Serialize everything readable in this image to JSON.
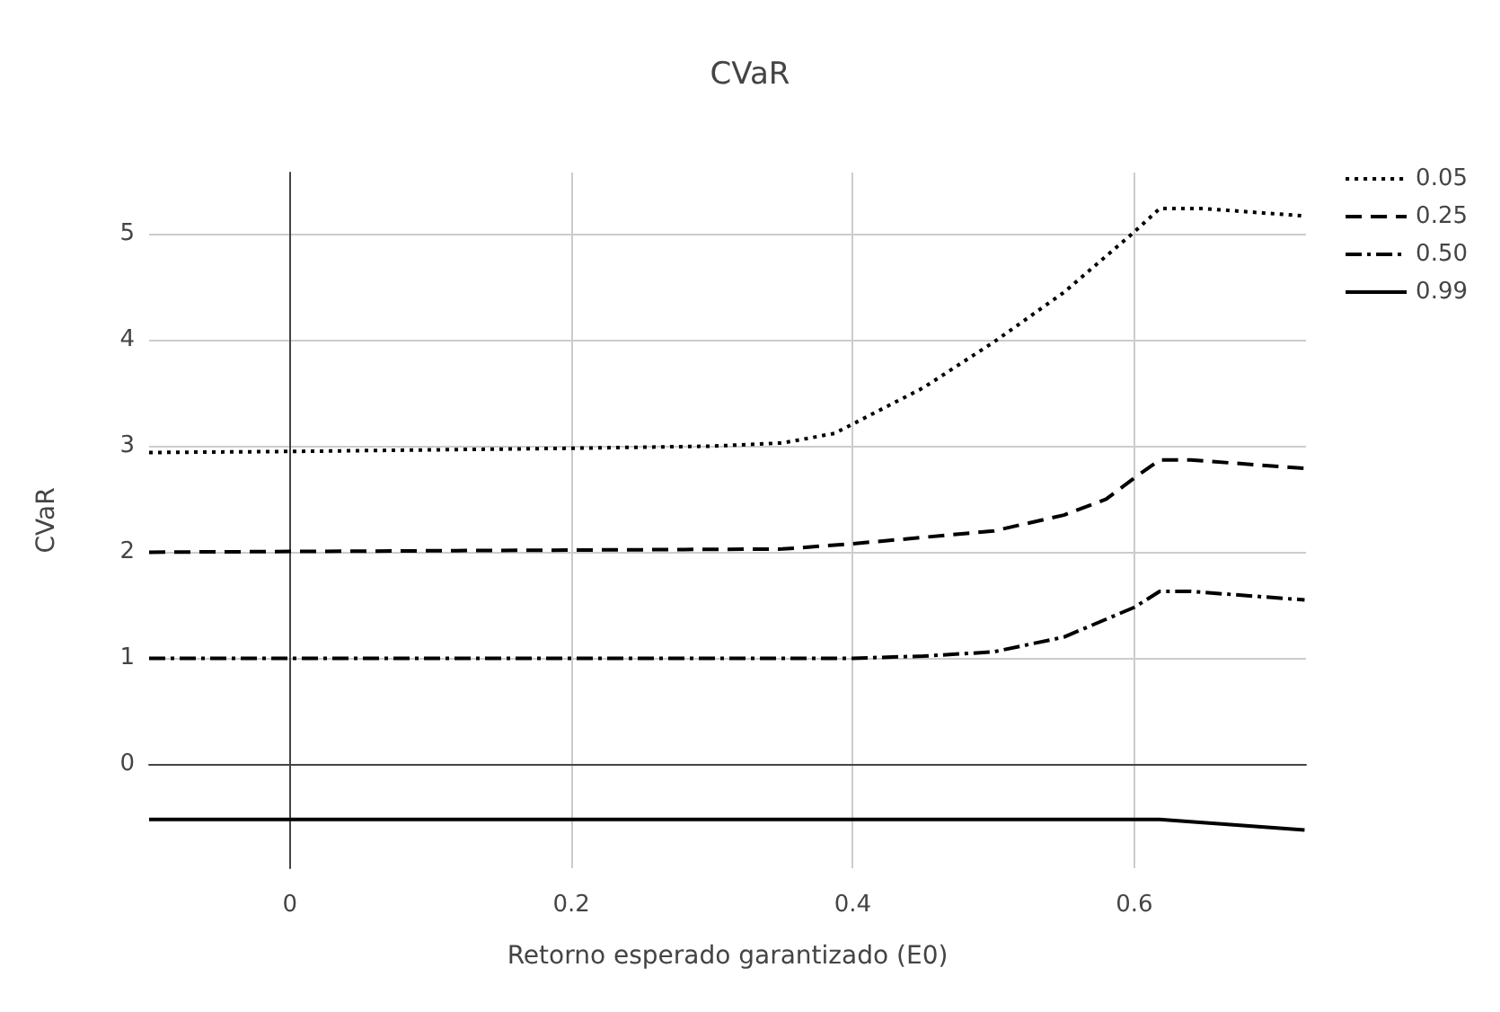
{
  "chart_data": {
    "type": "line",
    "title": "CVaR",
    "xlabel": "Retorno esperado garantizado (E0)",
    "ylabel": "CVaR",
    "xlim": [
      -0.1,
      0.722
    ],
    "xticks": [
      0,
      0.2,
      0.4,
      0.6
    ],
    "ylim": [
      -0.98,
      5.58
    ],
    "yticks": [
      0,
      1,
      2,
      3,
      4,
      5
    ],
    "grid": true,
    "legend": "top right",
    "marker": "none",
    "series": [
      {
        "name": "0.05",
        "color": "#000000",
        "line_style": "dotted",
        "x": [
          -0.1,
          0,
          0.2,
          0.3,
          0.35,
          0.387,
          0.45,
          0.5,
          0.55,
          0.6,
          0.618,
          0.65,
          0.721
        ],
        "values": [
          2.94,
          2.95,
          2.98,
          3.0,
          3.03,
          3.12,
          3.55,
          3.98,
          4.45,
          5.02,
          5.24,
          5.24,
          5.17
        ]
      },
      {
        "name": "0.25",
        "color": "#000000",
        "line_style": "dashed",
        "x": [
          -0.1,
          0.35,
          0.4,
          0.5,
          0.55,
          0.58,
          0.6,
          0.618,
          0.64,
          0.721
        ],
        "values": [
          2.0,
          2.03,
          2.08,
          2.2,
          2.35,
          2.5,
          2.7,
          2.87,
          2.87,
          2.79
        ]
      },
      {
        "name": "0.50",
        "color": "#000000",
        "line_style": "dashdot",
        "x": [
          -0.1,
          0.4,
          0.45,
          0.5,
          0.55,
          0.6,
          0.618,
          0.64,
          0.721
        ],
        "values": [
          1.0,
          1.0,
          1.02,
          1.06,
          1.2,
          1.48,
          1.63,
          1.63,
          1.55
        ]
      },
      {
        "name": "0.99",
        "color": "#000000",
        "line_style": "solid",
        "x": [
          -0.1,
          0.618,
          0.721
        ],
        "values": [
          -0.52,
          -0.52,
          -0.62
        ]
      }
    ]
  }
}
